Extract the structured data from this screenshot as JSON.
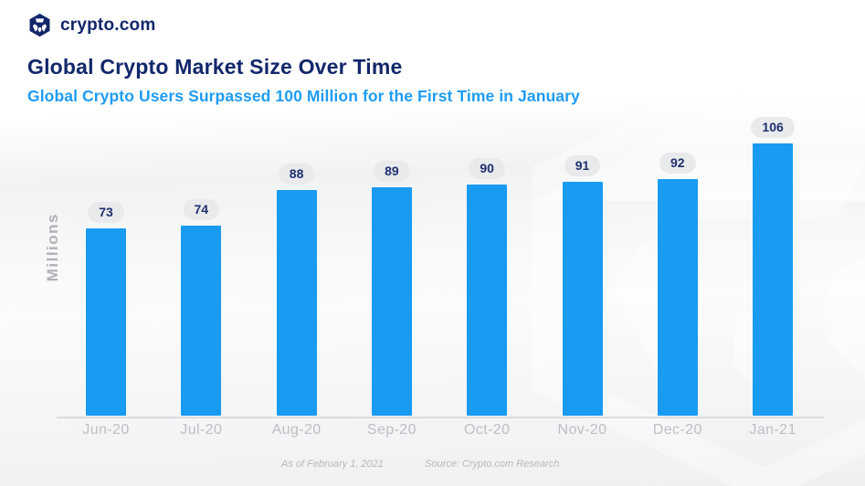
{
  "brand": {
    "logo_text": "crypto.com"
  },
  "header": {
    "title": "Global Crypto Market Size Over Time",
    "subtitle": "Global Crypto Users Surpassed 100 Million for the First Time in January"
  },
  "chart_data": {
    "type": "bar",
    "categories": [
      "Jun-20",
      "Jul-20",
      "Aug-20",
      "Sep-20",
      "Oct-20",
      "Nov-20",
      "Dec-20",
      "Jan-21"
    ],
    "values": [
      73,
      74,
      88,
      89,
      90,
      91,
      92,
      106
    ],
    "title": "Global Crypto Market Size Over Time",
    "xlabel": "",
    "ylabel": "Millions",
    "ylim": [
      0,
      116
    ],
    "grid": false,
    "legend": "none",
    "value_labels_shown": true,
    "bar_color": "#199bf2"
  },
  "footer": {
    "as_of": "As of February 1, 2021",
    "source": "Source: Crypto.com Research"
  },
  "colors": {
    "title_navy": "#12276b",
    "subtitle_blue": "#1e9cf4",
    "bar_blue": "#199bf2",
    "badge_background": "#e9eaec",
    "badge_text": "#1d306f",
    "axis_label_gray": "#bcbfc4",
    "footer_gray": "#b6b9bc",
    "axis_line": "#dadbde"
  }
}
